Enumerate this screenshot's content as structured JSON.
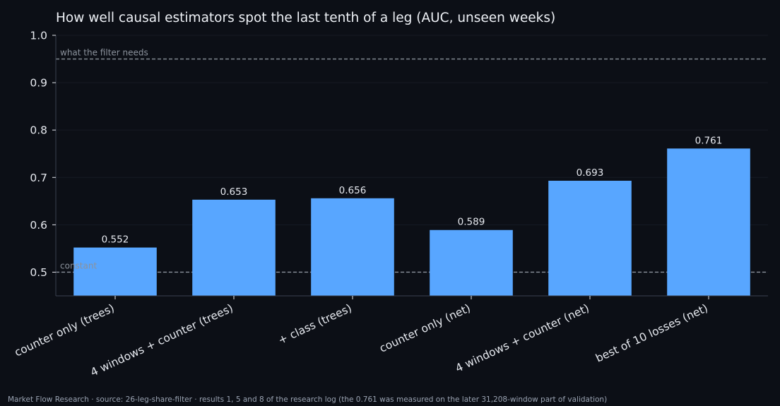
{
  "chart_data": {
    "type": "bar",
    "title": "How well causal estimators spot the last tenth of a leg (AUC, unseen weeks)",
    "xlabel": "",
    "ylabel": "",
    "categories": [
      "counter only (trees)",
      "4 windows + counter (trees)",
      "+ class (trees)",
      "counter only (net)",
      "4 windows + counter (net)",
      "best of 10 losses (net)"
    ],
    "values": [
      0.552,
      0.653,
      0.656,
      0.589,
      0.693,
      0.761
    ],
    "value_labels": [
      "0.552",
      "0.653",
      "0.656",
      "0.589",
      "0.693",
      "0.761"
    ],
    "ylim": [
      0.45,
      1.0
    ],
    "yticks": [
      0.5,
      0.6,
      0.7,
      0.8,
      0.9,
      1.0
    ],
    "ytick_labels": [
      "0.5",
      "0.6",
      "0.7",
      "0.8",
      "0.9",
      "1.0"
    ],
    "grid": "horizontal",
    "legend": "none",
    "reference_lines": [
      {
        "label": "what the filter needs",
        "value": 0.95
      },
      {
        "label": "constant",
        "value": 0.5
      }
    ],
    "colors": {
      "bar": "#58a6ff",
      "reference_line": "#8b929c",
      "reference_label": "#8b929c",
      "axis": "#3a4150",
      "grid": "#161b24",
      "tick_label": "#e6e9ef",
      "value_label": "#e6e9ef",
      "background": "#0c0f16"
    }
  },
  "footer": "Market Flow Research · source: 26-leg-share-filter · results 1, 5 and 8 of the research log (the 0.761 was measured on the later 31,208-window part of validation)"
}
